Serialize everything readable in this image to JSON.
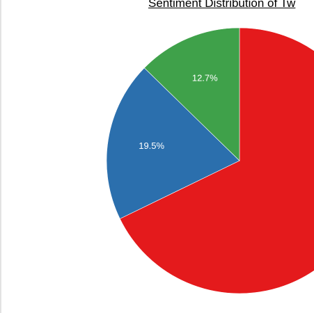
{
  "chart_data": {
    "type": "pie",
    "title": "Sentiment Distribution of Tw",
    "slices": [
      {
        "value": 67.8,
        "color": "#e41a1c",
        "label": ""
      },
      {
        "value": 19.5,
        "color": "#2b6fad",
        "label": "19.5%"
      },
      {
        "value": 12.7,
        "color": "#3fa14a",
        "label": "12.7%"
      }
    ]
  }
}
